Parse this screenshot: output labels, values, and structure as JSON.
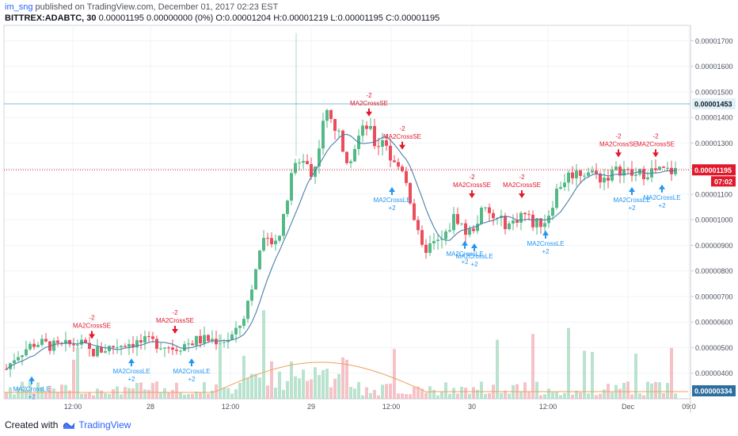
{
  "header": {
    "user": "im_sng",
    "published": "published on TradingView.com, December 01, 2017 02:23 EST"
  },
  "legend": {
    "symbol": "BITTREX:ADABTC, 30",
    "price": "0.00001195",
    "change": "0.00000000 (0%)",
    "o_label": "O:",
    "o": "0.00001204",
    "h_label": "H:",
    "h": "0.00001219",
    "l_label": "L:",
    "l": "0.00001195",
    "c_label": "C:",
    "c": "0.00001195"
  },
  "footer": {
    "created_with": "Created with",
    "brand": "TradingView"
  },
  "colors": {
    "up": "#53b987",
    "down": "#eb4d5c",
    "ma": "#4a7fa8",
    "vol_ma": "#f0a15a",
    "sell": "#e0192c",
    "buy": "#2196f3",
    "price_line": "#e0192c",
    "res_line": "#7fbcd0"
  },
  "chart_data": {
    "type": "candlestick",
    "ylim": [
      3e-06,
      1.76e-05
    ],
    "y_ticks": [
      "0.00001700",
      "0.00001600",
      "0.00001500",
      "0.00001400",
      "0.00001300",
      "0.00001200",
      "0.00001100",
      "0.00001000",
      "0.00000900",
      "0.00000800",
      "0.00000700",
      "0.00000600",
      "0.00000500",
      "0.00000400"
    ],
    "x_ticks": [
      "12:00",
      "28",
      "12:00",
      "29",
      "12:00",
      "30",
      "12:00",
      "Dec",
      "09:0"
    ],
    "resistance_label": "0.00001453",
    "last_price_label": "0.00001195",
    "countdown": "07:02",
    "volume_ma_label": "0.00000334",
    "price_key_points": [
      [
        0,
        3.8e-06
      ],
      [
        20,
        4.7e-06
      ],
      [
        45,
        5.2e-06
      ],
      [
        75,
        5e-06
      ],
      [
        100,
        5.2e-06
      ],
      [
        115,
        4.8e-06
      ],
      [
        160,
        5.2e-06
      ],
      [
        195,
        5.2e-06
      ],
      [
        220,
        5e-06
      ],
      [
        250,
        5.3e-06
      ],
      [
        285,
        5.3e-06
      ],
      [
        300,
        5.6e-06
      ],
      [
        315,
        7e-06
      ],
      [
        330,
        9e-06
      ],
      [
        355,
        9.5e-06
      ],
      [
        370,
        1.2e-05
      ],
      [
        385,
        1.25e-05
      ],
      [
        395,
        1.15e-05
      ],
      [
        410,
        1.43e-05
      ],
      [
        425,
        1.35e-05
      ],
      [
        440,
        1.23e-05
      ],
      [
        455,
        1.34e-05
      ],
      [
        465,
        1.37e-05
      ],
      [
        475,
        1.28e-05
      ],
      [
        485,
        1.33e-05
      ],
      [
        495,
        1.22e-05
      ],
      [
        510,
        1.2e-05
      ],
      [
        520,
        1.05e-05
      ],
      [
        532,
        8.8e-06
      ],
      [
        545,
        9e-06
      ],
      [
        560,
        9.2e-06
      ],
      [
        575,
        1.02e-05
      ],
      [
        590,
        9.4e-06
      ],
      [
        600,
        9.8e-06
      ],
      [
        610,
        1.04e-05
      ],
      [
        625,
        1e-05
      ],
      [
        645,
        9.8e-06
      ],
      [
        660,
        1.03e-05
      ],
      [
        675,
        9.8e-06
      ],
      [
        690,
        1e-05
      ],
      [
        705,
        1.13e-05
      ],
      [
        720,
        1.18e-05
      ],
      [
        745,
        1.19e-05
      ],
      [
        760,
        1.16e-05
      ],
      [
        785,
        1.2e-05
      ],
      [
        800,
        1.17e-05
      ],
      [
        820,
        1.19e-05
      ],
      [
        850,
        1.19e-05
      ]
    ],
    "signals": [
      {
        "type": "sell",
        "label": "MA2CrossSE",
        "qty": "-2",
        "x": 116,
        "price": 5e-06
      },
      {
        "type": "buy",
        "label": "MA2CrossLE",
        "qty": "+2",
        "x": 40,
        "price": 4e-06
      },
      {
        "type": "buy",
        "label": "MA2CrossLE",
        "qty": "+2",
        "x": 166,
        "price": 4.7e-06
      },
      {
        "type": "sell",
        "label": "MA2CrossSE",
        "qty": "-2",
        "x": 221,
        "price": 5.2e-06
      },
      {
        "type": "buy",
        "label": "MA2CrossLE",
        "qty": "+2",
        "x": 242,
        "price": 4.7e-06
      },
      {
        "type": "sell",
        "label": "MA2CrossSE",
        "qty": "-2",
        "x": 466,
        "price": 1.37e-05
      },
      {
        "type": "sell",
        "label": "MA2CrossSE",
        "qty": "-2",
        "x": 508,
        "price": 1.24e-05
      },
      {
        "type": "buy",
        "label": "MA2CrossLE",
        "qty": "+2",
        "x": 495,
        "price": 1.14e-05
      },
      {
        "type": "buy",
        "label": "MA2CrossLE",
        "qty": "+2",
        "x": 587,
        "price": 9.3e-06
      },
      {
        "type": "buy",
        "label": "MA2CrossLE",
        "qty": "+2",
        "x": 599,
        "price": 9.2e-06
      },
      {
        "type": "sell",
        "label": "MA2CrossSE",
        "qty": "-2",
        "x": 596,
        "price": 1.05e-05
      },
      {
        "type": "sell",
        "label": "MA2CrossSE",
        "qty": "-2",
        "x": 659,
        "price": 1.05e-05
      },
      {
        "type": "buy",
        "label": "MA2CrossLE",
        "qty": "+2",
        "x": 689,
        "price": 9.7e-06
      },
      {
        "type": "sell",
        "label": "MA2CrossSE",
        "qty": "-2",
        "x": 781,
        "price": 1.21e-05
      },
      {
        "type": "buy",
        "label": "MA2CrossLE",
        "qty": "+2",
        "x": 798,
        "price": 1.14e-05
      },
      {
        "type": "sell",
        "label": "MA2CrossSE",
        "qty": "-2",
        "x": 828,
        "price": 1.21e-05
      },
      {
        "type": "buy",
        "label": "MA2CrossLE",
        "qty": "+2",
        "x": 836,
        "price": 1.15e-05
      }
    ]
  }
}
